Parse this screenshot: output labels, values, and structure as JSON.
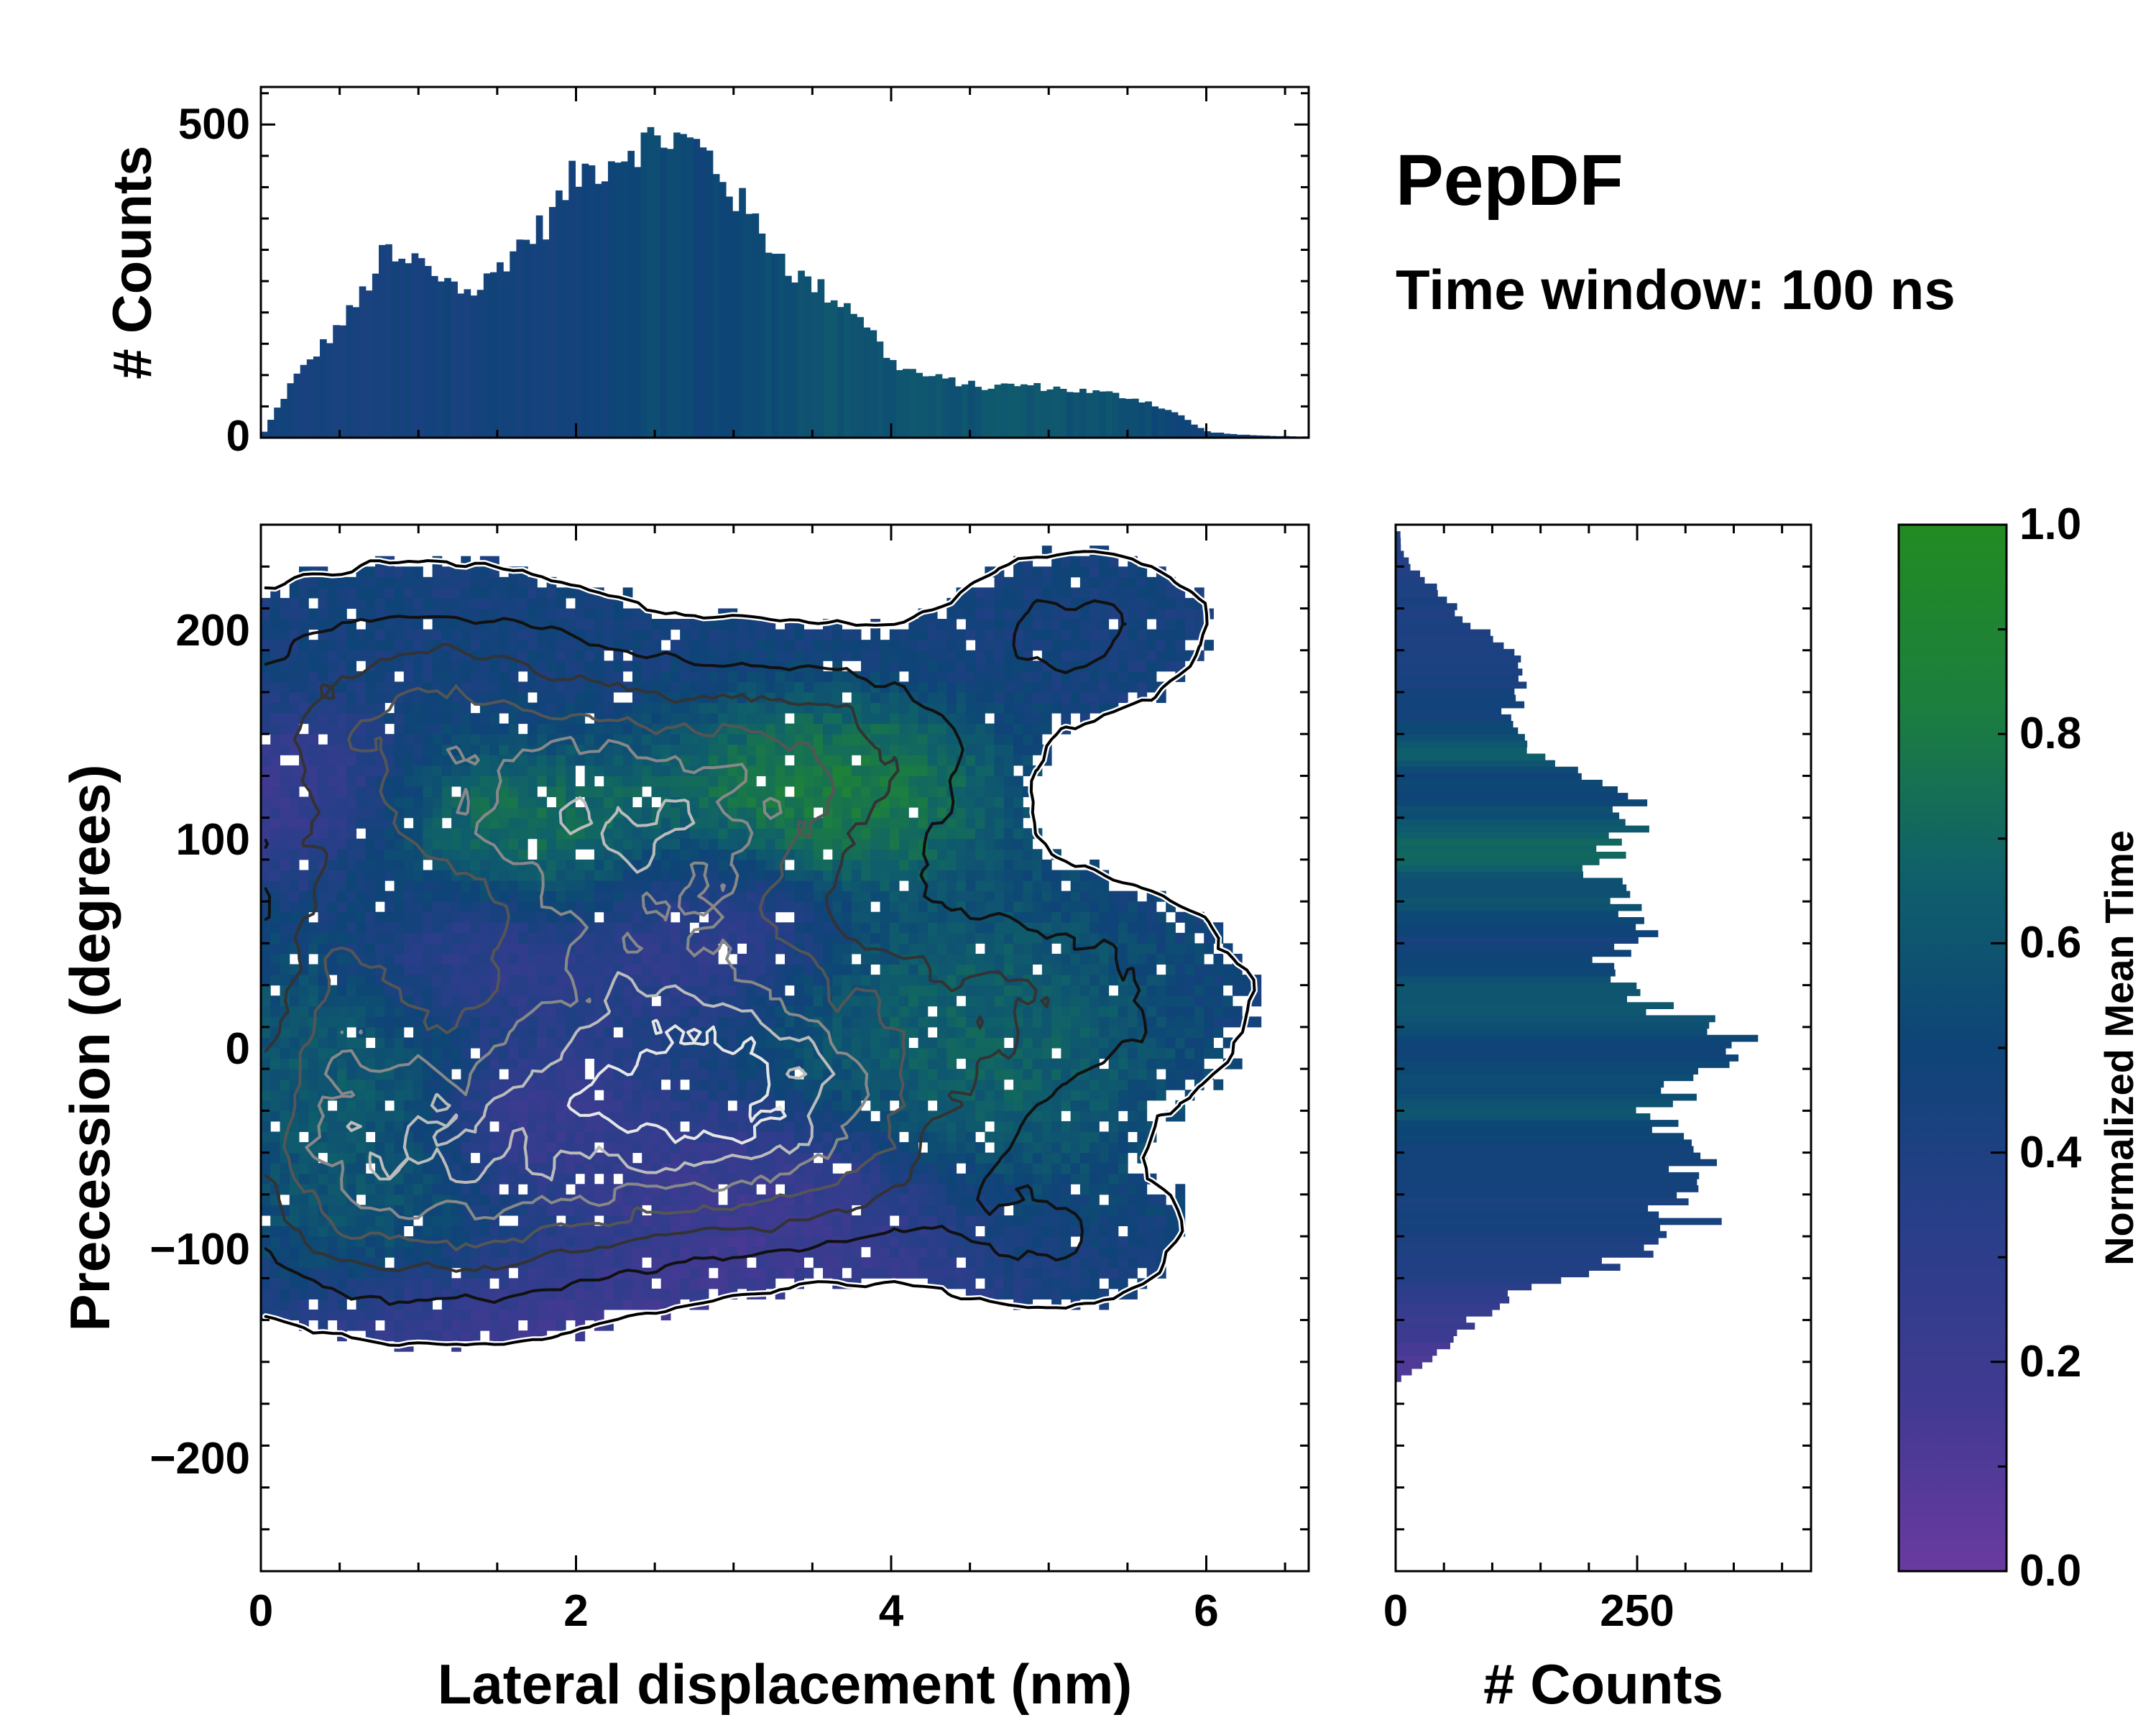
{
  "chart_data": [
    {
      "id": "top_histogram",
      "type": "bar",
      "title": "",
      "xlabel": "",
      "ylabel": "# Counts",
      "xlim": [
        0,
        6.65
      ],
      "ylim": [
        0,
        560
      ],
      "yticks": [
        0,
        500
      ],
      "ytick_labels": [
        "0",
        "500"
      ],
      "colormap": "viridis-like (Normalized Mean Time)",
      "x": [
        0.0,
        0.2,
        0.4,
        0.6,
        0.8,
        0.9,
        1.0,
        1.1,
        1.2,
        1.3,
        1.4,
        1.6,
        1.8,
        2.0,
        2.2,
        2.3,
        2.4,
        2.6,
        2.8,
        2.9,
        3.0,
        3.2,
        3.4,
        3.6,
        3.8,
        4.0,
        4.2,
        4.4,
        4.6,
        4.8,
        5.0,
        5.2,
        5.4,
        5.6,
        5.8,
        6.0,
        6.2,
        6.4,
        6.6
      ],
      "values": [
        0,
        90,
        150,
        210,
        300,
        270,
        290,
        250,
        260,
        230,
        240,
        300,
        340,
        420,
        440,
        460,
        470,
        480,
        460,
        430,
        390,
        320,
        260,
        230,
        200,
        120,
        100,
        90,
        80,
        85,
        80,
        75,
        70,
        60,
        40,
        10,
        5,
        3,
        2
      ],
      "mean_time": [
        0.45,
        0.45,
        0.44,
        0.44,
        0.45,
        0.46,
        0.45,
        0.47,
        0.46,
        0.46,
        0.47,
        0.46,
        0.45,
        0.46,
        0.47,
        0.5,
        0.52,
        0.55,
        0.5,
        0.52,
        0.5,
        0.55,
        0.58,
        0.6,
        0.57,
        0.6,
        0.62,
        0.58,
        0.6,
        0.62,
        0.6,
        0.58,
        0.6,
        0.55,
        0.5,
        0.48,
        0.45,
        0.45,
        0.45
      ]
    },
    {
      "id": "main_heatmap",
      "type": "heatmap",
      "title": "",
      "xlabel": "Lateral displacement (nm)",
      "ylabel": "Precession (degrees)",
      "xlim": [
        0,
        6.65
      ],
      "ylim": [
        -250,
        250
      ],
      "xticks": [
        0,
        2,
        4,
        6
      ],
      "xtick_labels": [
        "0",
        "2",
        "4",
        "6"
      ],
      "yticks": [
        -200,
        -100,
        0,
        100,
        200
      ],
      "ytick_labels": [
        "−200",
        "−100",
        "0",
        "100",
        "200"
      ],
      "colorbar_label": "Normalized Mean Time",
      "colorbar_range": [
        0.0,
        1.0
      ],
      "colorbar_ticks": [
        0.0,
        0.2,
        0.4,
        0.6,
        0.8,
        1.0
      ],
      "colorbar_tick_labels": [
        "0.0",
        "0.2",
        "0.4",
        "0.6",
        "0.8",
        "1.0"
      ],
      "colormap_stops": [
        "#6a3aa0",
        "#413a92",
        "#293e89",
        "#0e4477",
        "#0f5f6b",
        "#1c7f3e",
        "#238b22"
      ],
      "overlay": "density contours (white outer boundary, black/grey inner levels, light grey at highest density)",
      "density_blobs": [
        {
          "x": 2.5,
          "y": 0,
          "sx": 0.9,
          "sy": 45,
          "w": 1.0
        },
        {
          "x": 2.2,
          "y": 100,
          "sx": 0.9,
          "sy": 40,
          "w": 0.9
        },
        {
          "x": 1.2,
          "y": -60,
          "sx": 0.9,
          "sy": 40,
          "w": 0.9
        },
        {
          "x": 3.3,
          "y": -40,
          "sx": 0.7,
          "sy": 35,
          "w": 0.7
        },
        {
          "x": 1.0,
          "y": 160,
          "sx": 0.9,
          "sy": 40,
          "w": 0.6
        },
        {
          "x": 4.8,
          "y": 20,
          "sx": 0.9,
          "sy": 40,
          "w": 0.45
        },
        {
          "x": 5.2,
          "y": 200,
          "sx": 0.55,
          "sy": 25,
          "w": 0.35
        },
        {
          "x": 5.0,
          "y": -90,
          "sx": 0.6,
          "sy": 25,
          "w": 0.3
        },
        {
          "x": 0.5,
          "y": 20,
          "sx": 0.4,
          "sy": 60,
          "w": 0.6
        },
        {
          "x": 3.5,
          "y": 140,
          "sx": 0.8,
          "sy": 35,
          "w": 0.5
        }
      ],
      "mean_time_regions": [
        {
          "x": 3.6,
          "y": 120,
          "sx": 0.6,
          "sy": 25,
          "v": 0.95
        },
        {
          "x": 1.6,
          "y": 95,
          "sx": 0.7,
          "sy": 25,
          "v": 0.9
        },
        {
          "x": 4.5,
          "y": 0,
          "sx": 0.7,
          "sy": 40,
          "v": 0.75
        },
        {
          "x": 0.6,
          "y": 0,
          "sx": 0.5,
          "sy": 60,
          "v": 0.7
        },
        {
          "x": 0.3,
          "y": 110,
          "sx": 0.4,
          "sy": 25,
          "v": 0.05
        },
        {
          "x": 1.2,
          "y": 50,
          "sx": 0.5,
          "sy": 25,
          "v": 0.1
        },
        {
          "x": 3.2,
          "y": -80,
          "sx": 0.7,
          "sy": 30,
          "v": 0.1
        },
        {
          "x": 2.3,
          "y": -140,
          "sx": 1.2,
          "sy": 20,
          "v": 0.1
        },
        {
          "x": 2.7,
          "y": 60,
          "sx": 0.5,
          "sy": 25,
          "v": 0.2
        },
        {
          "x": 1.7,
          "y": -30,
          "sx": 0.4,
          "sy": 20,
          "v": 0.15
        }
      ],
      "base_mean_time": 0.45
    },
    {
      "id": "side_histogram",
      "type": "bar",
      "orientation": "horizontal",
      "title": "",
      "xlabel": "# Counts",
      "ylabel": "",
      "xlim": [
        0,
        430
      ],
      "ylim": [
        -250,
        250
      ],
      "xticks": [
        0,
        250
      ],
      "xtick_labels": [
        "0",
        "250"
      ],
      "y": [
        -160,
        -150,
        -140,
        -130,
        -120,
        -110,
        -100,
        -90,
        -80,
        -70,
        -60,
        -50,
        -40,
        -30,
        -20,
        -10,
        0,
        10,
        20,
        30,
        40,
        50,
        60,
        70,
        80,
        90,
        100,
        110,
        120,
        130,
        140,
        150,
        160,
        170,
        180,
        190,
        200,
        210,
        220,
        230,
        240
      ],
      "values": [
        0,
        30,
        60,
        80,
        120,
        160,
        250,
        310,
        300,
        290,
        310,
        320,
        300,
        280,
        300,
        340,
        380,
        320,
        280,
        240,
        210,
        250,
        250,
        230,
        210,
        220,
        240,
        230,
        240,
        200,
        160,
        130,
        110,
        140,
        130,
        110,
        90,
        60,
        40,
        15,
        5
      ],
      "mean_time": [
        0.1,
        0.12,
        0.18,
        0.22,
        0.28,
        0.35,
        0.4,
        0.42,
        0.45,
        0.44,
        0.45,
        0.46,
        0.5,
        0.6,
        0.55,
        0.52,
        0.5,
        0.55,
        0.62,
        0.58,
        0.48,
        0.45,
        0.52,
        0.6,
        0.55,
        0.72,
        0.68,
        0.58,
        0.5,
        0.5,
        0.66,
        0.55,
        0.45,
        0.45,
        0.42,
        0.42,
        0.42,
        0.4,
        0.4,
        0.38,
        0.38
      ]
    }
  ],
  "annotations": {
    "title": "PepDF",
    "subtitle": "Time window: 100 ns"
  }
}
